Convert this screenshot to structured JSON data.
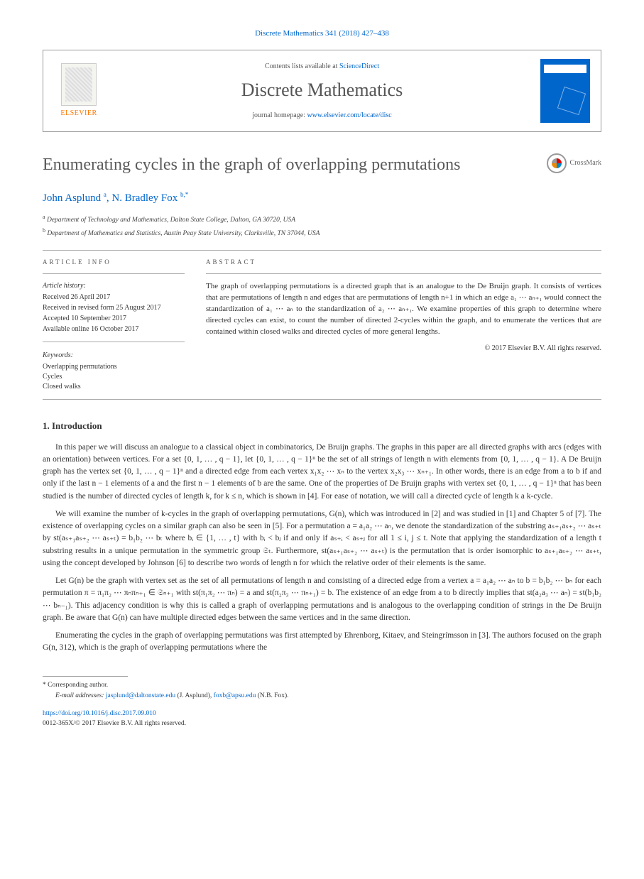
{
  "journal_ref": {
    "prefix": "Discrete Mathematics 341 (2018) 427–438"
  },
  "header": {
    "publisher_name": "ELSEVIER",
    "contents_prefix": "Contents lists available at ",
    "contents_link": "ScienceDirect",
    "journal_title": "Discrete Mathematics",
    "homepage_prefix": "journal homepage: ",
    "homepage_link": "www.elsevier.com/locate/disc"
  },
  "crossmark": "CrossMark",
  "title": "Enumerating cycles in the graph of overlapping permutations",
  "authors": [
    {
      "name": "John Asplund",
      "aff": "a"
    },
    {
      "name": "N. Bradley Fox",
      "aff": "b,*"
    }
  ],
  "affiliations": [
    {
      "marker": "a",
      "text": "Department of Technology and Mathematics, Dalton State College, Dalton, GA 30720, USA"
    },
    {
      "marker": "b",
      "text": "Department of Mathematics and Statistics, Austin Peay State University, Clarksville, TN 37044, USA"
    }
  ],
  "article_info": {
    "label": "ARTICLE INFO",
    "history_label": "Article history:",
    "history": [
      "Received 26 April 2017",
      "Received in revised form 25 August 2017",
      "Accepted 10 September 2017",
      "Available online 16 October 2017"
    ],
    "keywords_label": "Keywords:",
    "keywords": [
      "Overlapping permutations",
      "Cycles",
      "Closed walks"
    ]
  },
  "abstract": {
    "label": "ABSTRACT",
    "text": "The graph of overlapping permutations is a directed graph that is an analogue to the De Bruijn graph. It consists of vertices that are permutations of length n and edges that are permutations of length n+1 in which an edge a₁ ⋯ aₙ₊₁ would connect the standardization of a₁ ⋯ aₙ to the standardization of a₂ ⋯ aₙ₊₁. We examine properties of this graph to determine where directed cycles can exist, to count the number of directed 2-cycles within the graph, and to enumerate the vertices that are contained within closed walks and directed cycles of more general lengths.",
    "copyright": "© 2017 Elsevier B.V. All rights reserved."
  },
  "sections": {
    "intro_heading": "1. Introduction",
    "para1": "In this paper we will discuss an analogue to a classical object in combinatorics, De Bruijn graphs. The graphs in this paper are all directed graphs with arcs (edges with an orientation) between vertices. For a set {0, 1, … , q − 1}, let {0, 1, … , q − 1}ⁿ be the set of all strings of length n with elements from {0, 1, … , q − 1}. A De Bruijn graph has the vertex set {0, 1, … , q − 1}ⁿ and a directed edge from each vertex x₁x₂ ⋯ xₙ to the vertex x₂x₃ ⋯ xₙ₊₁. In other words, there is an edge from a to b if and only if the last n − 1 elements of a and the first n − 1 elements of b are the same. One of the properties of De Bruijn graphs with vertex set {0, 1, … , q − 1}ⁿ that has been studied is the number of directed cycles of length k, for k ≤ n, which is shown in [4]. For ease of notation, we will call a directed cycle of length k a k-cycle.",
    "para2": "We will examine the number of k-cycles in the graph of overlapping permutations, G(n), which was introduced in [2] and was studied in [1] and Chapter 5 of [7]. The existence of overlapping cycles on a similar graph can also be seen in [5]. For a permutation a = a₁a₂ ⋯ aₙ, we denote the standardization of the substring aₛ₊₁aₛ₊₂ ⋯ aₛ₊ₜ by st(aₛ₊₁aₛ₊₂ ⋯ aₛ₊ₜ) = b₁b₂ ⋯ bₜ where bᵢ ∈ {1, … , t} with bᵢ < bⱼ if and only if aₛ₊ᵢ < aₛ₊ⱼ for all 1 ≤ i, j ≤ t. Note that applying the standardization of a length t substring results in a unique permutation in the symmetric group 𝔖ₜ. Furthermore, st(aₛ₊₁aₛ₊₂ ⋯ aₛ₊ₜ) is the permutation that is order isomorphic to aₛ₊₁aₛ₊₂ ⋯ aₛ₊ₜ, using the concept developed by Johnson [6] to describe two words of length n for which the relative order of their elements is the same.",
    "para3": "Let G(n) be the graph with vertex set as the set of all permutations of length n and consisting of a directed edge from a vertex a = a₁a₂ ⋯ aₙ to b = b₁b₂ ⋯ bₙ for each permutation π = π₁π₂ ⋯ πₙπₙ₊₁ ∈ 𝔖ₙ₊₁ with st(π₁π₂ ⋯ πₙ) = a and st(π₂π₃ ⋯ πₙ₊₁) = b. The existence of an edge from a to b directly implies that st(a₂a₃ ⋯ aₙ) = st(b₁b₂ ⋯ bₙ₋₁). This adjacency condition is why this is called a graph of overlapping permutations and is analogous to the overlapping condition of strings in the De Bruijn graph. Be aware that G(n) can have multiple directed edges between the same vertices and in the same direction.",
    "para4": "Enumerating the cycles in the graph of overlapping permutations was first attempted by Ehrenborg, Kitaev, and Steingrímsson in [3]. The authors focused on the graph G(n, 312), which is the graph of overlapping permutations where the"
  },
  "footer": {
    "corresponding": "* Corresponding author.",
    "email_label": "E-mail addresses:",
    "emails": [
      {
        "addr": "jasplund@daltonstate.edu",
        "who": "(J. Asplund)"
      },
      {
        "addr": "foxb@apsu.edu",
        "who": "(N.B. Fox)"
      }
    ],
    "doi": "https://doi.org/10.1016/j.disc.2017.09.010",
    "issn": "0012-365X/© 2017 Elsevier B.V. All rights reserved."
  }
}
